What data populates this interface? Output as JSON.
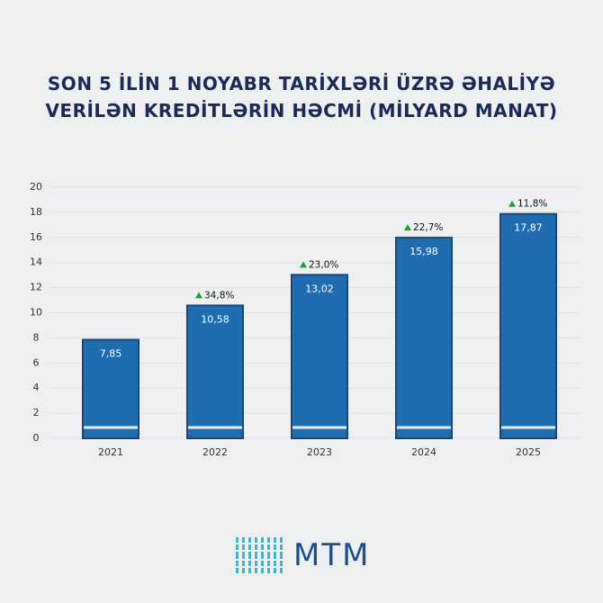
{
  "chart_data": {
    "type": "bar",
    "title": "SON 5 İLİN 1 NOYABR TARİXLƏRİ ÜZRƏ ƏHALİYƏ VERİLƏN KREDİTLƏRİN HƏCMİ (MİLYARD MANAT)",
    "categories": [
      "2021",
      "2022",
      "2023",
      "2024",
      "2025"
    ],
    "values": [
      7.85,
      10.58,
      13.02,
      15.98,
      17.87
    ],
    "value_labels": [
      "7,85",
      "10,58",
      "13,02",
      "15,98",
      "17,87"
    ],
    "annotations": [
      null,
      "34,8%",
      "23,0%",
      "22,7%",
      "11,8%"
    ],
    "color": "#1f6db0",
    "ylim": [
      0,
      20
    ],
    "yticks": [
      0,
      2,
      4,
      6,
      8,
      10,
      12,
      14,
      16,
      18,
      20
    ],
    "grid": true
  },
  "logo": "MTM"
}
